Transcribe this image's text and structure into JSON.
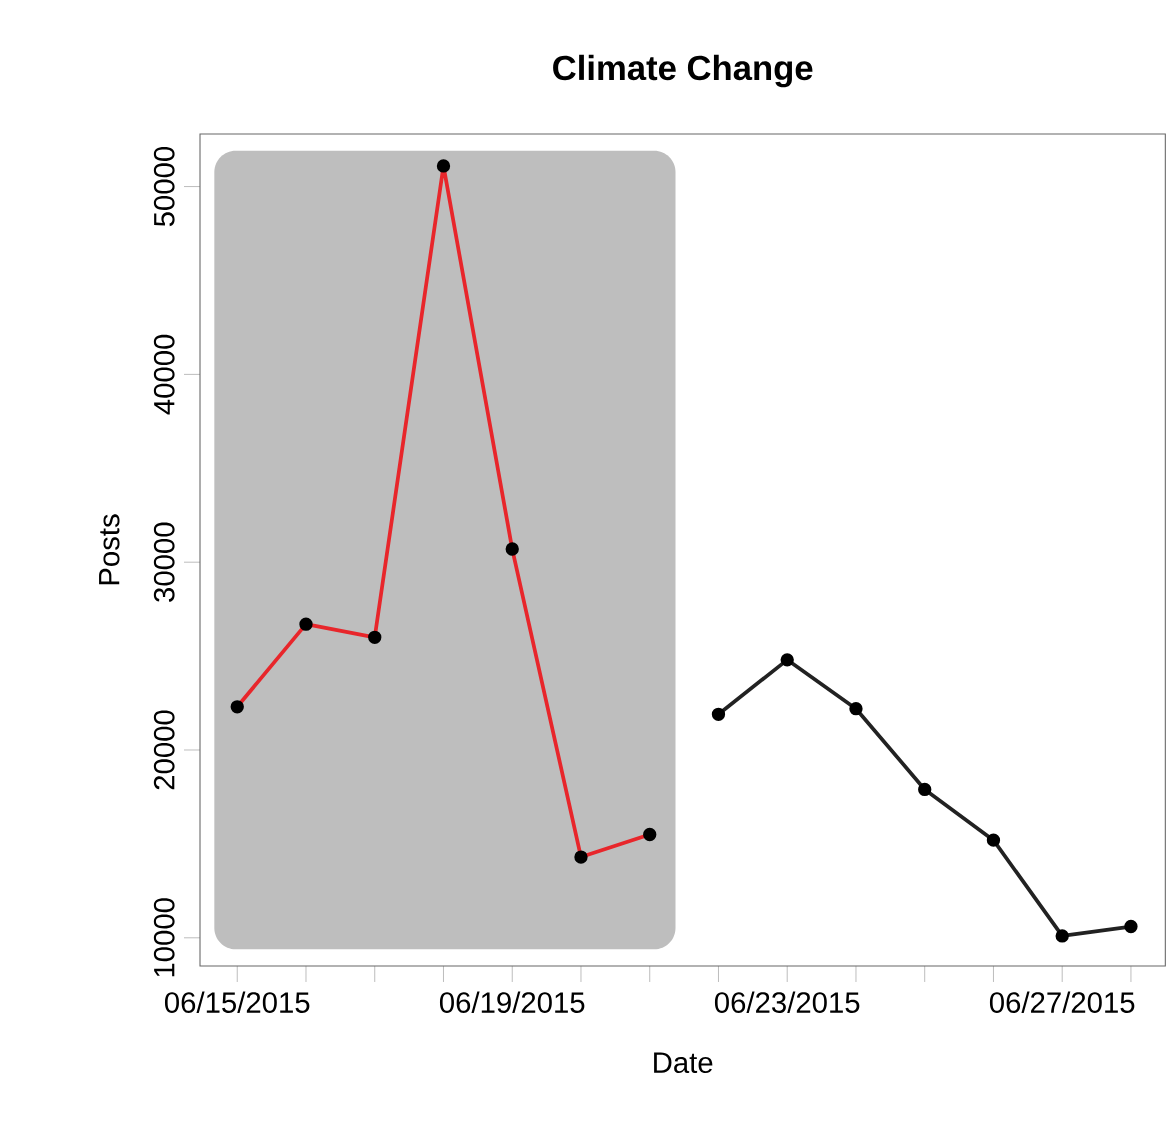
{
  "chart_data": {
    "type": "line",
    "title": "Climate Change",
    "xlabel": "Date",
    "ylabel": "Posts",
    "series": [
      {
        "color": "#e8262b",
        "x": [
          "2015-06-15",
          "2015-06-16",
          "2015-06-17",
          "2015-06-18",
          "2015-06-19",
          "2015-06-20",
          "2015-06-21"
        ],
        "values": [
          22300,
          26700,
          26000,
          51100,
          30700,
          14300,
          15500
        ]
      },
      {
        "color": "#222222",
        "x": [
          "2015-06-22",
          "2015-06-23",
          "2015-06-24",
          "2015-06-25",
          "2015-06-26",
          "2015-06-27",
          "2015-06-28"
        ],
        "values": [
          21900,
          24800,
          22200,
          17900,
          15200,
          10100,
          10600
        ]
      }
    ],
    "bands": [
      {
        "axis": "x",
        "from": "2015-06-14T16:00",
        "to": "2015-06-21T09:00",
        "color": "#bebebe"
      }
    ],
    "xlim": [
      "2015-06-14T11:00",
      "2015-06-28T12:00"
    ],
    "xticks": [
      {
        "value": "2015-06-15",
        "label": "06/15/2015"
      },
      {
        "value": "2015-06-16",
        "label": null
      },
      {
        "value": "2015-06-17",
        "label": null
      },
      {
        "value": "2015-06-18",
        "label": null
      },
      {
        "value": "2015-06-19",
        "label": "06/19/2015"
      },
      {
        "value": "2015-06-20",
        "label": null
      },
      {
        "value": "2015-06-21",
        "label": null
      },
      {
        "value": "2015-06-22",
        "label": null
      },
      {
        "value": "2015-06-23",
        "label": "06/23/2015"
      },
      {
        "value": "2015-06-24",
        "label": null
      },
      {
        "value": "2015-06-25",
        "label": null
      },
      {
        "value": "2015-06-26",
        "label": null
      },
      {
        "value": "2015-06-27",
        "label": "06/27/2015"
      },
      {
        "value": "2015-06-28",
        "label": null
      }
    ],
    "ylim": [
      8500,
      52800
    ],
    "yticks": [
      10000,
      20000,
      30000,
      40000,
      50000
    ],
    "grid": false,
    "marker": "circle",
    "line_style": "solid"
  }
}
